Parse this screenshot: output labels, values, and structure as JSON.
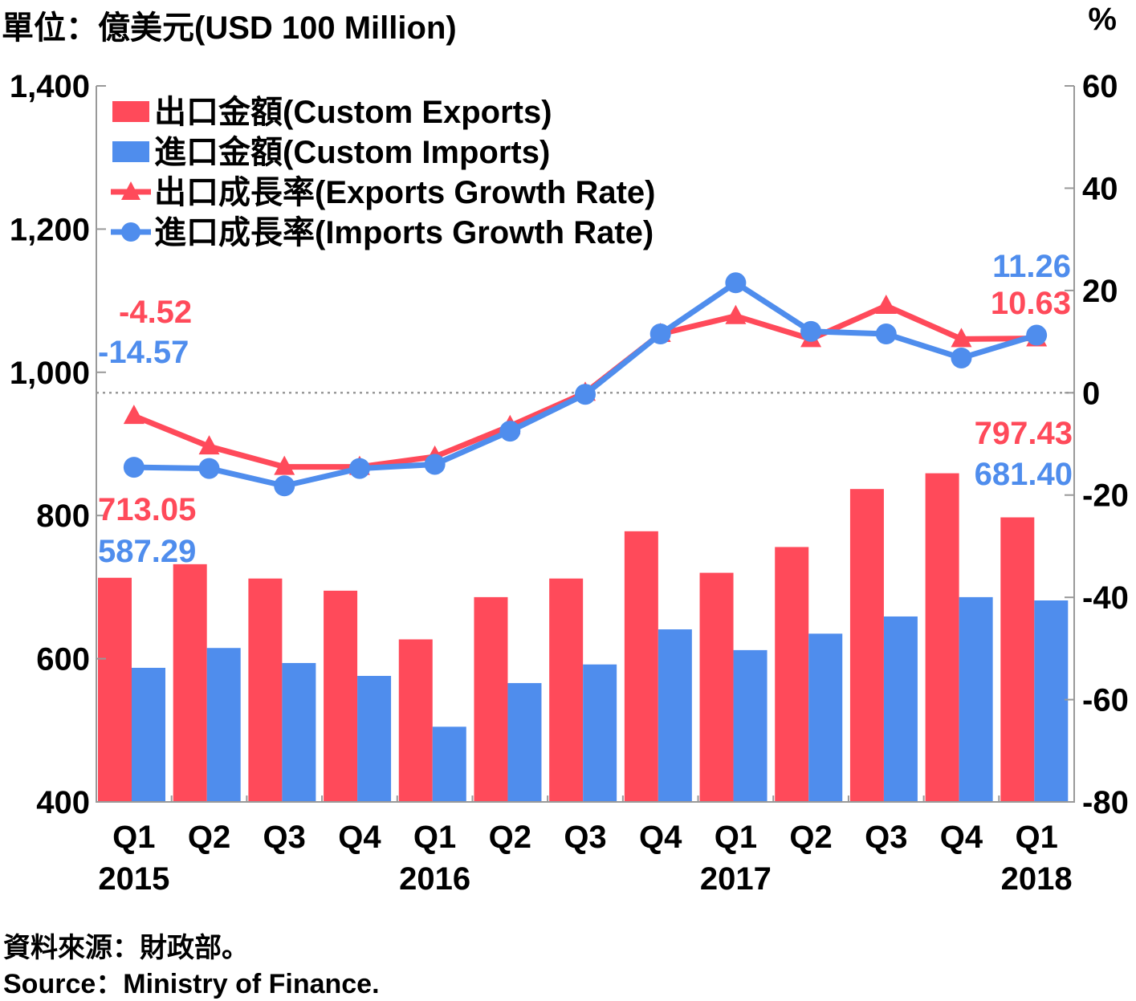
{
  "header": {
    "left_unit": "單位：億美元(USD 100 Million)",
    "right_unit": "%"
  },
  "footer": {
    "source_zh": "資料來源：財政部。",
    "source_en": "Source：Ministry of Finance."
  },
  "colors": {
    "exports": "#ff4a5a",
    "imports": "#4f8ded",
    "zero_line": "#999999"
  },
  "chart_data": {
    "type": "bar+line",
    "categories": [
      "Q1",
      "Q2",
      "Q3",
      "Q4",
      "Q1",
      "Q2",
      "Q3",
      "Q4",
      "Q1",
      "Q2",
      "Q3",
      "Q4",
      "Q1"
    ],
    "years": [
      {
        "label": "2015",
        "index": 0
      },
      {
        "label": "2016",
        "index": 4
      },
      {
        "label": "2017",
        "index": 8
      },
      {
        "label": "2018",
        "index": 12
      }
    ],
    "y_left": {
      "min": 400,
      "max": 1400,
      "ticks": [
        400,
        600,
        800,
        1000,
        1200,
        1400
      ],
      "tick_labels": [
        "400",
        "600",
        "800",
        "1,000",
        "1,200",
        "1,400"
      ]
    },
    "y_right": {
      "min": -80,
      "max": 60,
      "ticks": [
        -80,
        -60,
        -40,
        -20,
        0,
        20,
        40,
        60
      ],
      "tick_labels": [
        "-80",
        "-60",
        "-40",
        "-20",
        "0",
        "20",
        "40",
        "60"
      ]
    },
    "bars": [
      {
        "name": "出口金額(Custom Exports)",
        "color_key": "exports",
        "values": [
          713.05,
          732,
          712,
          695,
          627,
          686,
          712,
          778,
          720,
          756,
          837,
          859,
          797.43
        ]
      },
      {
        "name": "進口金額(Custom Imports)",
        "color_key": "imports",
        "values": [
          587.29,
          615,
          594,
          576,
          505,
          566,
          592,
          641,
          612,
          635,
          659,
          686,
          681.4
        ]
      }
    ],
    "lines": [
      {
        "name": "出口成長率(Exports Growth Rate)",
        "color_key": "exports",
        "marker": "triangle",
        "axis": "right",
        "values": [
          -4.52,
          -10.5,
          -14.5,
          -14.5,
          -12.5,
          -6.5,
          0,
          11.5,
          15,
          10.5,
          17,
          10.5,
          10.63
        ]
      },
      {
        "name": "進口成長率(Imports Growth Rate)",
        "color_key": "imports",
        "marker": "circle",
        "axis": "right",
        "values": [
          -14.57,
          -14.8,
          -18.2,
          -14.8,
          -14.0,
          -7.5,
          -0.3,
          11.5,
          21.5,
          12.0,
          11.5,
          6.8,
          11.26
        ]
      }
    ],
    "data_labels": [
      {
        "text": "713.05",
        "color_key": "exports"
      },
      {
        "text": "587.29",
        "color_key": "imports"
      },
      {
        "text": "-4.52",
        "color_key": "exports"
      },
      {
        "text": "-14.57",
        "color_key": "imports"
      },
      {
        "text": "797.43",
        "color_key": "exports"
      },
      {
        "text": "681.40",
        "color_key": "imports"
      },
      {
        "text": "10.63",
        "color_key": "exports"
      },
      {
        "text": "11.26",
        "color_key": "imports"
      }
    ],
    "legend_position": "top-left"
  }
}
